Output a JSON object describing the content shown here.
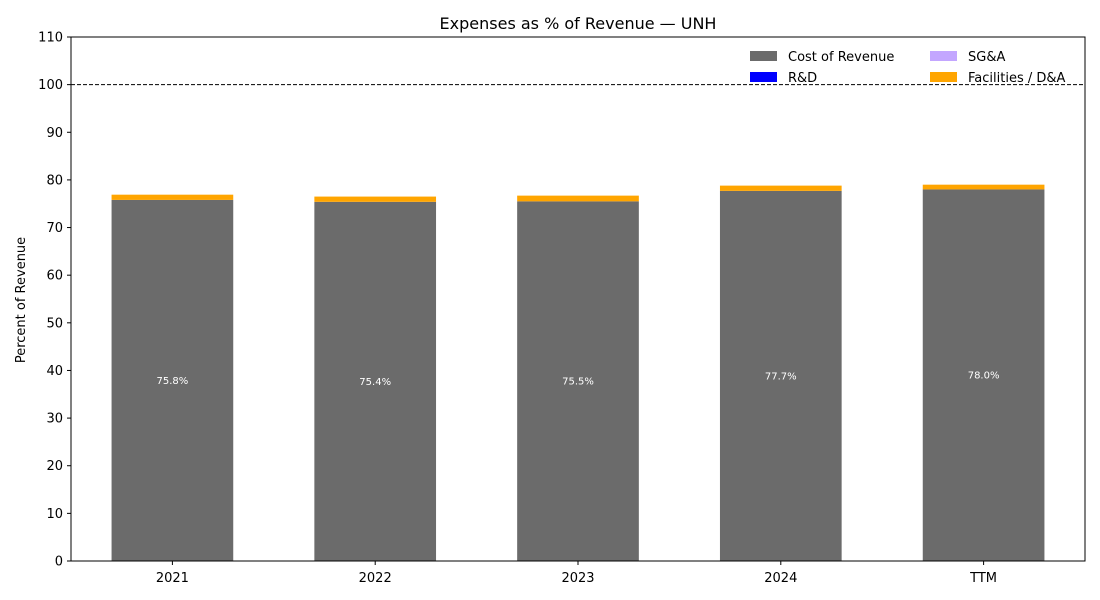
{
  "chart_data": {
    "type": "bar",
    "stacked": true,
    "title": "Expenses as % of Revenue — UNH",
    "xlabel": "",
    "ylabel": "Percent of Revenue",
    "ylim": [
      0,
      110
    ],
    "yticks": [
      0,
      10,
      20,
      30,
      40,
      50,
      60,
      70,
      80,
      90,
      100,
      110
    ],
    "categories": [
      "2021",
      "2022",
      "2023",
      "2024",
      "TTM"
    ],
    "series": [
      {
        "name": "Cost of Revenue",
        "color": "#6b6b6b",
        "values": [
          75.8,
          75.4,
          75.5,
          77.7,
          78.0
        ]
      },
      {
        "name": "R&D",
        "color": "#0000ff",
        "values": [
          0,
          0,
          0,
          0,
          0
        ]
      },
      {
        "name": "SG&A",
        "color": "#c3a6ff",
        "values": [
          0,
          0,
          0,
          0,
          0
        ]
      },
      {
        "name": "Facilities / D&A",
        "color": "#ffa500",
        "values": [
          1.1,
          1.1,
          1.2,
          1.1,
          1.0
        ]
      }
    ],
    "data_labels": [
      "75.8%",
      "75.4%",
      "75.5%",
      "77.7%",
      "78.0%"
    ],
    "reference_line": {
      "y": 100,
      "style": "dashed",
      "color": "#000000"
    },
    "legend": {
      "placement": "top-right",
      "columns": 2
    },
    "grid": false
  }
}
